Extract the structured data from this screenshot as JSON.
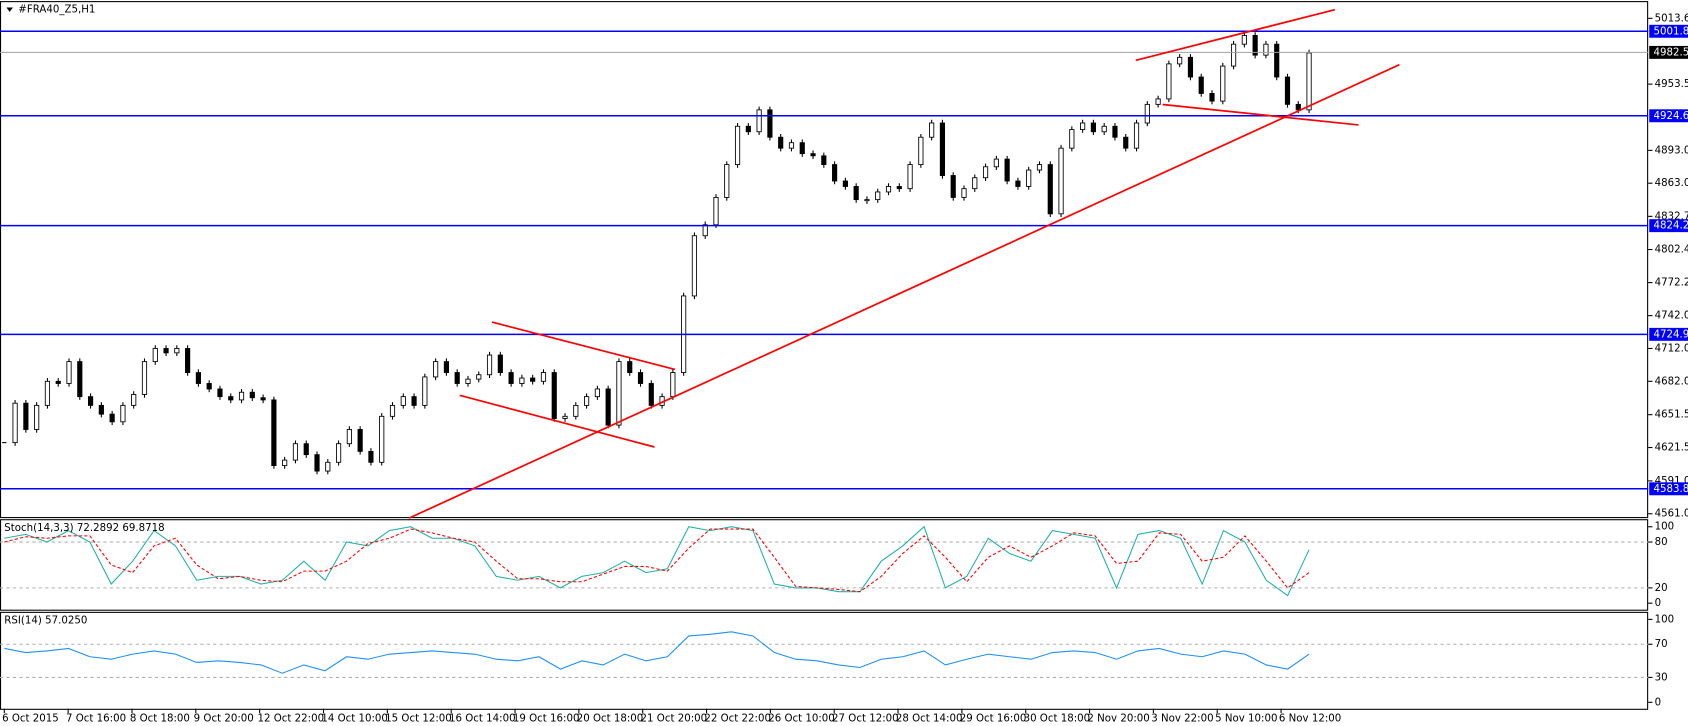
{
  "chart_data": [
    {
      "type": "candlestick",
      "title": "#FRA40_Z5,H1",
      "xtick_labels": [
        "6 Oct 2015",
        "7 Oct 16:00",
        "8 Oct 18:00",
        "9 Oct 20:00",
        "12 Oct 22:00",
        "14 Oct 10:00",
        "15 Oct 12:00",
        "16 Oct 14:00",
        "19 Oct 16:00",
        "20 Oct 18:00",
        "21 Oct 20:00",
        "22 Oct 22:00",
        "26 Oct 10:00",
        "27 Oct 12:00",
        "28 Oct 14:00",
        "29 Oct 16:00",
        "30 Oct 18:00",
        "2 Nov 20:00",
        "3 Nov 22:00",
        "5 Nov 10:00",
        "6 Nov 12:00"
      ],
      "closes": [
        4626,
        4662,
        4638,
        4660,
        4682,
        4680,
        4700,
        4668,
        4660,
        4652,
        4645,
        4660,
        4670,
        4700,
        4712,
        4708,
        4712,
        4690,
        4680,
        4675,
        4668,
        4665,
        4672,
        4667,
        4665,
        4605,
        4610,
        4625,
        4615,
        4600,
        4608,
        4625,
        4638,
        4618,
        4608,
        4650,
        4660,
        4668,
        4660,
        4686,
        4700,
        4690,
        4680,
        4684,
        4688,
        4706,
        4690,
        4680,
        4685,
        4682,
        4690,
        4648,
        4650,
        4660,
        4668,
        4675,
        4642,
        4700,
        4690,
        4680,
        4660,
        4668,
        4690,
        4760,
        4815,
        4825,
        4850,
        4880,
        4915,
        4910,
        4930,
        4905,
        4895,
        4900,
        4890,
        4888,
        4880,
        4865,
        4860,
        4848,
        4848,
        4855,
        4860,
        4858,
        4880,
        4905,
        4918,
        4870,
        4850,
        4858,
        4868,
        4878,
        4885,
        4865,
        4860,
        4875,
        4880,
        4835,
        4895,
        4912,
        4918,
        4910,
        4915,
        4905,
        4895,
        4918,
        4935,
        4940,
        4972,
        4978,
        4960,
        4945,
        4938,
        4970,
        4990,
        4998,
        4980,
        4990,
        4960,
        4935,
        4930,
        4982
      ],
      "ylim": [
        4558,
        5028.4
      ],
      "yticks": [
        5013.6,
        4953.5,
        {
          "value": 4893,
          "label": "4893.0"
        },
        {
          "value": 4863,
          "label": "4863.0"
        },
        4832.7,
        4802.4,
        4772.2,
        {
          "value": 4742,
          "label": "4742.0"
        },
        {
          "value": 4712,
          "label": "4712.0"
        },
        {
          "value": 4682,
          "label": "4682.0"
        },
        4651.5,
        4621.5,
        {
          "value": 4591,
          "label": "4591.0"
        },
        {
          "value": 4561,
          "label": "4561.0"
        }
      ],
      "levels": [
        5001.8,
        4924.6,
        4824.2,
        4724.9,
        4583.8
      ],
      "level_color": "#0000ff",
      "last_price": 4982.5
    },
    {
      "type": "line",
      "label": "Stoch(14,3,3) 72.2892 69.8718",
      "series": [
        {
          "color": "#20b2aa",
          "values": [
            85,
            90,
            80,
            95,
            80,
            25,
            55,
            95,
            75,
            30,
            35,
            35,
            25,
            30,
            55,
            30,
            80,
            75,
            95,
            100,
            85,
            85,
            75,
            35,
            30,
            35,
            20,
            35,
            40,
            55,
            40,
            45,
            100,
            95,
            100,
            95,
            25,
            20,
            20,
            15,
            15,
            55,
            75,
            100,
            20,
            35,
            85,
            65,
            55,
            95,
            90,
            85,
            20,
            90,
            95,
            85,
            25,
            95,
            80,
            30,
            10,
            70
          ]
        },
        {
          "color": "#ff0000",
          "dashed": true,
          "values": [
            80,
            87,
            85,
            88,
            88,
            50,
            40,
            75,
            85,
            50,
            32,
            35,
            30,
            28,
            42,
            42,
            55,
            78,
            85,
            97,
            92,
            85,
            80,
            55,
            32,
            32,
            28,
            28,
            38,
            48,
            48,
            42,
            72,
            97,
            97,
            97,
            60,
            22,
            20,
            18,
            15,
            35,
            65,
            88,
            60,
            28,
            60,
            75,
            60,
            75,
            92,
            88,
            52,
            55,
            92,
            90,
            55,
            60,
            88,
            55,
            20,
            40
          ]
        }
      ],
      "ylim": [
        -8.5,
        108.5
      ],
      "yticks": [
        100,
        80,
        20,
        0
      ],
      "grid_ticks": [
        80,
        20
      ]
    },
    {
      "type": "line",
      "label": "RSI(14) 57.0250",
      "series": [
        {
          "color": "#1e90ff",
          "values": [
            65,
            60,
            62,
            65,
            55,
            52,
            58,
            62,
            58,
            48,
            50,
            48,
            45,
            35,
            45,
            38,
            55,
            52,
            58,
            60,
            62,
            60,
            58,
            52,
            50,
            55,
            40,
            50,
            45,
            58,
            50,
            55,
            80,
            82,
            85,
            80,
            60,
            52,
            50,
            45,
            42,
            52,
            55,
            62,
            45,
            52,
            58,
            55,
            52,
            60,
            62,
            60,
            52,
            62,
            65,
            58,
            55,
            62,
            58,
            45,
            40,
            58
          ]
        }
      ],
      "ylim": [
        -7.8,
        107.8
      ],
      "yticks": [
        100,
        70,
        30,
        0
      ],
      "grid_ticks": [
        70,
        30
      ]
    }
  ]
}
